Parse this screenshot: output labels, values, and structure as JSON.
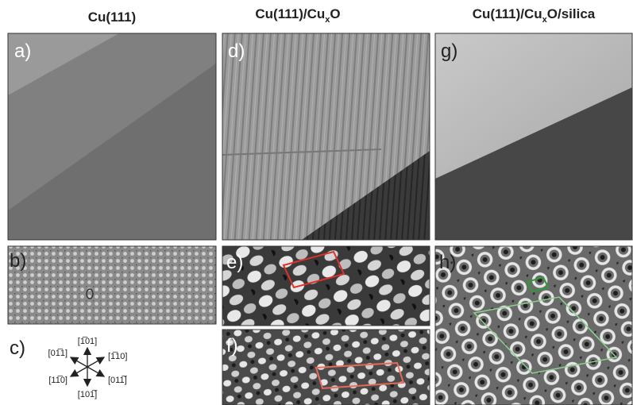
{
  "titles": [
    {
      "text": "Cu(111)"
    },
    {
      "text": "Cu(111)/Cu",
      "subscript": "x",
      "suffix": "O"
    },
    {
      "text": "Cu(111)/Cu",
      "subscript": "x",
      "suffix": "O/silica"
    }
  ],
  "panels": [
    "a)",
    "b)",
    "c)",
    "d)",
    "e)",
    "f)",
    "g)",
    "h)"
  ],
  "directions": [
    "[1̅01]",
    "[01̅1]",
    "[1̅10]",
    "[11̅0]",
    "[011̅]",
    "[101̅]"
  ]
}
